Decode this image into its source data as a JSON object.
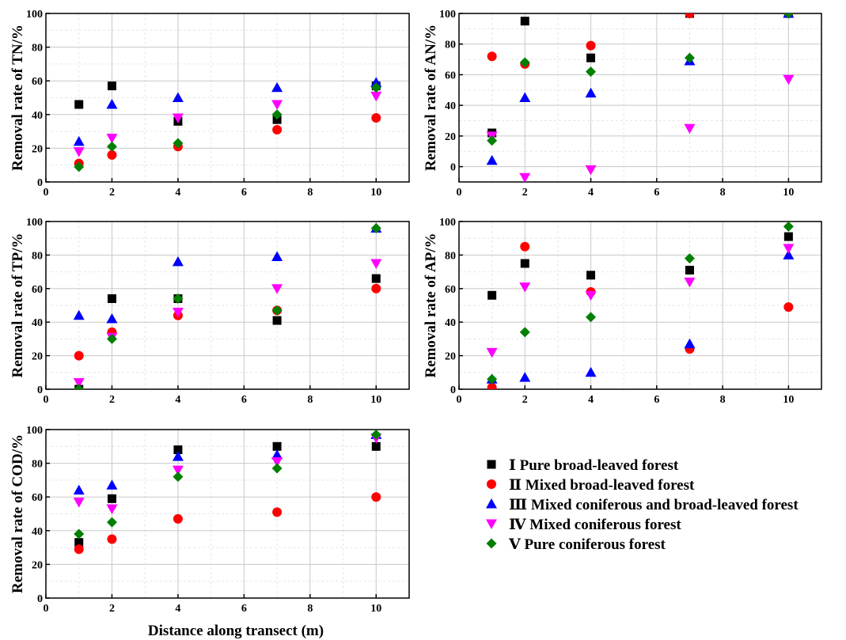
{
  "figure": {
    "xlabel": "Distance along transect (m)"
  },
  "legend": [
    {
      "name": "Ⅰ Pure broad-leaved forest",
      "marker": "square",
      "color": "#000000"
    },
    {
      "name": "Ⅱ Mixed broad-leaved forest",
      "marker": "circle",
      "color": "#ff0000"
    },
    {
      "name": "Ⅲ Mixed coniferous and broad-leaved forest",
      "marker": "triangle-up",
      "color": "#0000ff"
    },
    {
      "name": "Ⅳ Mixed coniferous forest",
      "marker": "triangle-down",
      "color": "#ff00ff"
    },
    {
      "name": "Ⅴ Pure coniferous forest",
      "marker": "diamond",
      "color": "#008000"
    }
  ],
  "chart_data": [
    {
      "type": "scatter",
      "ylabel": "Removal rate of TN/%",
      "xlim": [
        0,
        11
      ],
      "ylim": [
        0,
        100
      ],
      "xticks": [
        0,
        2,
        4,
        6,
        8,
        10
      ],
      "yticks": [
        0,
        20,
        40,
        60,
        80,
        100
      ],
      "grid": true,
      "x": [
        1,
        2,
        4,
        7,
        10
      ],
      "series": [
        {
          "name": "Ⅰ Pure broad-leaved forest",
          "values": [
            46,
            57,
            36,
            37,
            57
          ]
        },
        {
          "name": "Ⅱ Mixed broad-leaved forest",
          "values": [
            11,
            16,
            21,
            31,
            38
          ]
        },
        {
          "name": "Ⅲ Mixed coniferous and broad-leaved forest",
          "values": [
            24,
            46,
            50,
            56,
            59
          ]
        },
        {
          "name": "Ⅳ Mixed coniferous forest",
          "values": [
            18,
            26,
            38,
            46,
            51
          ]
        },
        {
          "name": "Ⅴ Pure coniferous forest",
          "values": [
            9,
            21,
            23,
            40,
            56
          ]
        }
      ]
    },
    {
      "type": "scatter",
      "ylabel": "Removal rate of AN/%",
      "xlim": [
        0,
        11
      ],
      "ylim": [
        -10,
        100
      ],
      "xticks": [
        0,
        2,
        4,
        6,
        8,
        10
      ],
      "yticks": [
        0,
        20,
        40,
        60,
        80,
        100
      ],
      "grid": true,
      "x": [
        1,
        2,
        4,
        7,
        10
      ],
      "series": [
        {
          "name": "Ⅰ Pure broad-leaved forest",
          "values": [
            22,
            95,
            71,
            100,
            100
          ]
        },
        {
          "name": "Ⅱ Mixed broad-leaved forest",
          "values": [
            72,
            67,
            79,
            100,
            100
          ]
        },
        {
          "name": "Ⅲ Mixed coniferous and broad-leaved forest",
          "values": [
            4,
            45,
            48,
            69,
            100
          ]
        },
        {
          "name": "Ⅳ Mixed coniferous forest",
          "values": [
            20,
            -7,
            -2,
            25,
            57
          ]
        },
        {
          "name": "Ⅴ Pure coniferous forest",
          "values": [
            17,
            68,
            62,
            71,
            100
          ]
        }
      ]
    },
    {
      "type": "scatter",
      "ylabel": "Removal rate of TP/%",
      "xlim": [
        0,
        11
      ],
      "ylim": [
        0,
        100
      ],
      "xticks": [
        0,
        2,
        4,
        6,
        8,
        10
      ],
      "yticks": [
        0,
        20,
        40,
        60,
        80,
        100
      ],
      "grid": true,
      "x": [
        1,
        2,
        4,
        7,
        10
      ],
      "series": [
        {
          "name": "Ⅰ Pure broad-leaved forest",
          "values": [
            0,
            54,
            54,
            41,
            66
          ]
        },
        {
          "name": "Ⅱ Mixed broad-leaved forest",
          "values": [
            20,
            34,
            44,
            47,
            60
          ]
        },
        {
          "name": "Ⅲ Mixed coniferous and broad-leaved forest",
          "values": [
            44,
            42,
            76,
            79,
            96
          ]
        },
        {
          "name": "Ⅳ Mixed coniferous forest",
          "values": [
            4,
            31,
            46,
            60,
            75
          ]
        },
        {
          "name": "Ⅴ Pure coniferous forest",
          "values": [
            0,
            30,
            54,
            47,
            96
          ]
        }
      ]
    },
    {
      "type": "scatter",
      "ylabel": "Removal rate of AP/%",
      "xlim": [
        0,
        11
      ],
      "ylim": [
        0,
        100
      ],
      "xticks": [
        0,
        2,
        4,
        6,
        8,
        10
      ],
      "yticks": [
        0,
        20,
        40,
        60,
        80,
        100
      ],
      "grid": true,
      "x": [
        1,
        2,
        4,
        7,
        10
      ],
      "series": [
        {
          "name": "Ⅰ Pure broad-leaved forest",
          "values": [
            56,
            75,
            68,
            71,
            91
          ]
        },
        {
          "name": "Ⅱ Mixed broad-leaved forest",
          "values": [
            1,
            85,
            58,
            24,
            49
          ]
        },
        {
          "name": "Ⅲ Mixed coniferous and broad-leaved forest",
          "values": [
            6,
            7,
            10,
            27,
            80
          ]
        },
        {
          "name": "Ⅳ Mixed coniferous forest",
          "values": [
            22,
            61,
            56,
            64,
            84
          ]
        },
        {
          "name": "Ⅴ Pure coniferous forest",
          "values": [
            6,
            34,
            43,
            78,
            97
          ]
        }
      ]
    },
    {
      "type": "scatter",
      "ylabel": "Removal rate of COD/%",
      "xlim": [
        0,
        11
      ],
      "ylim": [
        0,
        100
      ],
      "xticks": [
        0,
        2,
        4,
        6,
        8,
        10
      ],
      "yticks": [
        0,
        20,
        40,
        60,
        80,
        100
      ],
      "grid": true,
      "x": [
        1,
        2,
        4,
        7,
        10
      ],
      "series": [
        {
          "name": "Ⅰ Pure broad-leaved forest",
          "values": [
            33,
            59,
            88,
            90,
            90
          ]
        },
        {
          "name": "Ⅱ Mixed broad-leaved forest",
          "values": [
            29,
            35,
            47,
            51,
            60
          ]
        },
        {
          "name": "Ⅲ Mixed coniferous and broad-leaved forest",
          "values": [
            64,
            67,
            84,
            85,
            97
          ]
        },
        {
          "name": "Ⅳ Mixed coniferous forest",
          "values": [
            57,
            53,
            76,
            81,
            95
          ]
        },
        {
          "name": "Ⅴ Pure coniferous forest",
          "values": [
            38,
            45,
            72,
            77,
            97
          ]
        }
      ]
    }
  ]
}
